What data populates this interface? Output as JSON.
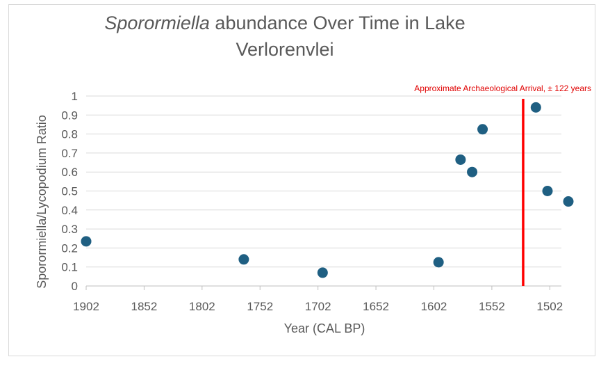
{
  "chart_data": {
    "type": "scatter",
    "title_italic": "Sporormiella",
    "title_rest": " abundance Over Time in Lake Verlorenvlei",
    "xlabel": "Year (CAL BP)",
    "ylabel": "Sporormiella/Lycopodium Ratio",
    "x_reversed": true,
    "xlim": [
      1902,
      1492
    ],
    "ylim": [
      0,
      1
    ],
    "x_ticks": [
      1902,
      1852,
      1802,
      1752,
      1702,
      1652,
      1602,
      1552,
      1502
    ],
    "x_tick_labels": [
      "1902",
      "1852",
      "1802",
      "1752",
      "1702",
      "1652",
      "1602",
      "1552",
      "1502"
    ],
    "y_ticks": [
      0,
      0.1,
      0.2,
      0.3,
      0.4,
      0.5,
      0.6,
      0.7,
      0.8,
      0.9,
      1
    ],
    "y_tick_labels": [
      "0",
      "0.1",
      "0.2",
      "0.3",
      "0.4",
      "0.5",
      "0.6",
      "0.7",
      "0.8",
      "0.9",
      "1"
    ],
    "grid": true,
    "marker_color": "#1f5f82",
    "points": [
      {
        "x": 1902,
        "y": 0.235
      },
      {
        "x": 1766,
        "y": 0.14
      },
      {
        "x": 1698,
        "y": 0.07
      },
      {
        "x": 1598,
        "y": 0.125
      },
      {
        "x": 1579,
        "y": 0.665
      },
      {
        "x": 1569,
        "y": 0.6
      },
      {
        "x": 1560,
        "y": 0.825
      },
      {
        "x": 1514,
        "y": 0.94
      },
      {
        "x": 1504,
        "y": 0.5
      },
      {
        "x": 1486,
        "y": 0.445
      }
    ],
    "annotation": {
      "label": "Approximate Archaeological Arrival, ± 122 years",
      "x": 1525,
      "color": "#ff0000"
    }
  }
}
